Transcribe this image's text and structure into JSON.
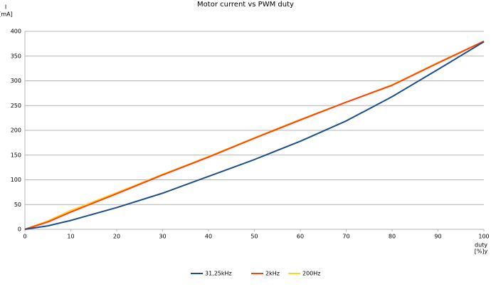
{
  "chart_data": {
    "type": "line",
    "title": "Motor current vs PWM duty",
    "y_label_lines": [
      "I",
      "[mA]"
    ],
    "x_label_lines": [
      "duty",
      "[%]y"
    ],
    "x": [
      0,
      5,
      10,
      20,
      30,
      40,
      50,
      60,
      70,
      80,
      90,
      100
    ],
    "series": [
      {
        "name": "31,25kHz",
        "color": "#1f4e8c",
        "values": [
          0,
          7,
          18,
          44,
          73,
          107,
          141,
          178,
          219,
          268,
          323,
          379
        ]
      },
      {
        "name": "2kHz",
        "color": "#ff420e",
        "values": [
          0,
          15,
          35,
          72,
          110,
          146,
          184,
          221,
          257,
          291,
          336,
          380
        ]
      },
      {
        "name": "200Hz",
        "color": "#ffd320",
        "values": [
          0,
          17,
          38,
          74,
          111,
          147,
          185,
          222,
          257,
          292,
          337,
          380
        ]
      }
    ],
    "xlim": [
      0,
      100
    ],
    "xticks": [
      0,
      10,
      20,
      30,
      40,
      50,
      60,
      70,
      80,
      90,
      100
    ],
    "ylim": [
      0,
      400
    ],
    "yticks": [
      0,
      50,
      100,
      150,
      200,
      250,
      300,
      350,
      400
    ],
    "grid": true,
    "legend": "bottom"
  }
}
